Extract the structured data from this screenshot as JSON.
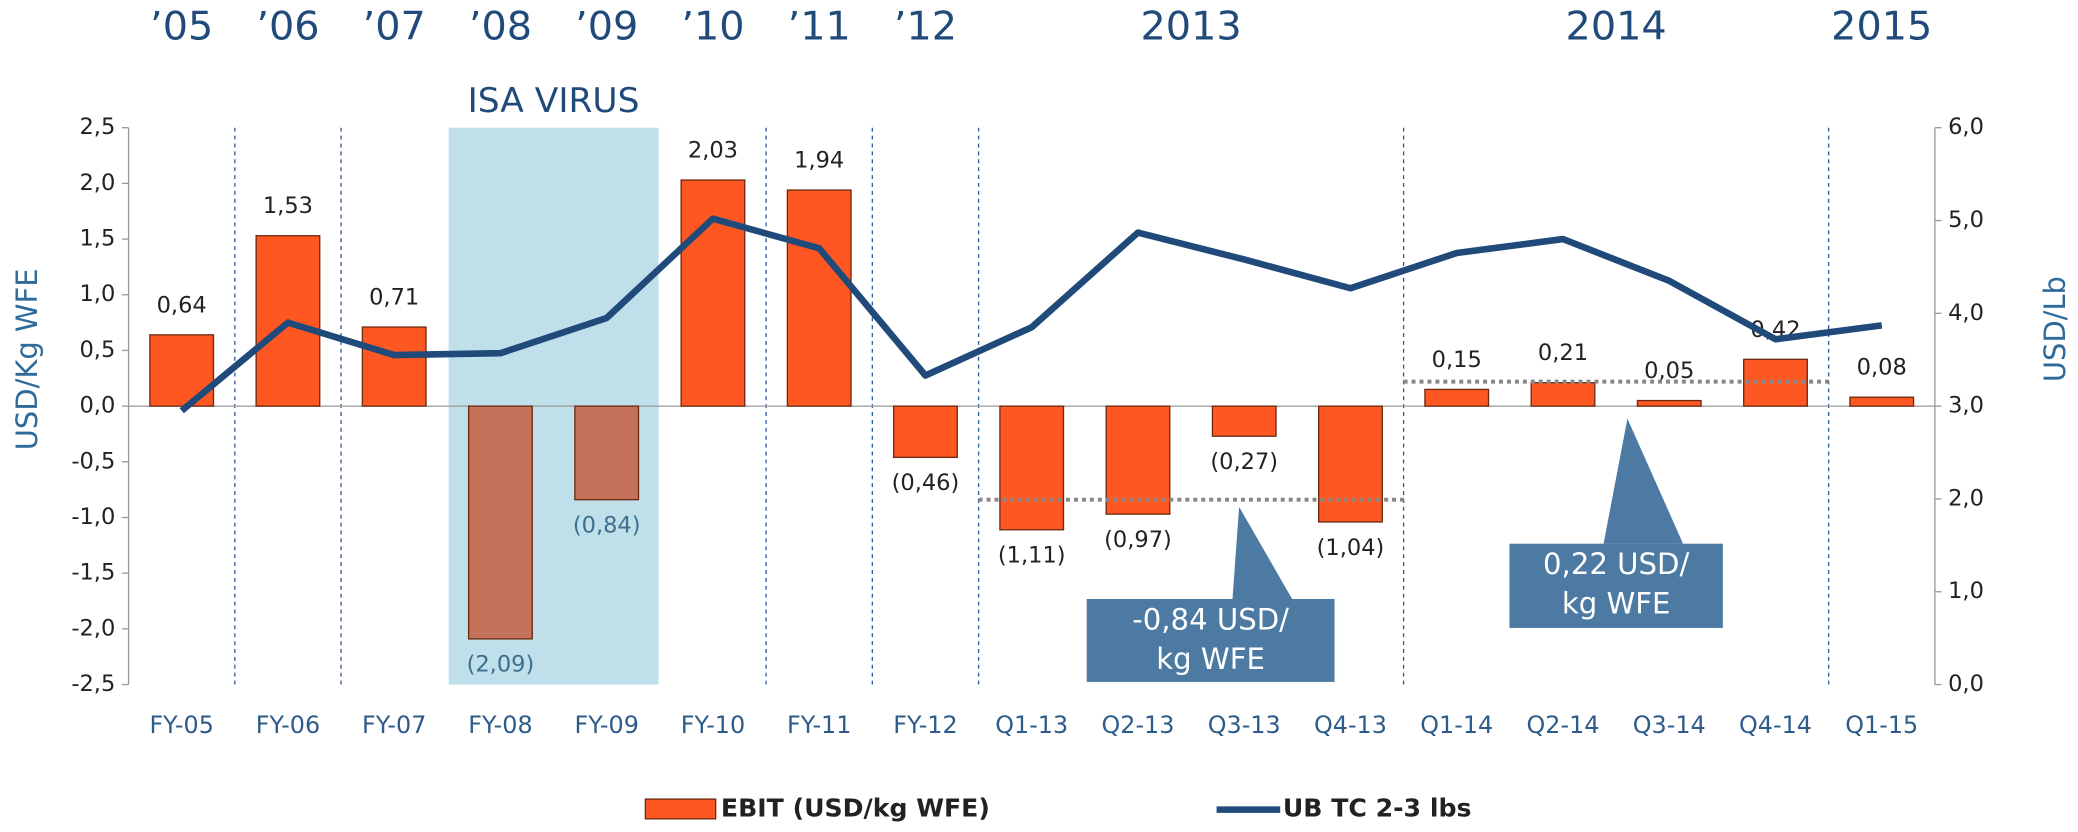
{
  "chart_data": {
    "type": "bar",
    "categories": [
      "FY-05",
      "FY-06",
      "FY-07",
      "FY-08",
      "FY-09",
      "FY-10",
      "FY-11",
      "FY-12",
      "Q1-13",
      "Q2-13",
      "Q3-13",
      "Q4-13",
      "Q1-14",
      "Q2-14",
      "Q3-14",
      "Q4-14",
      "Q1-15"
    ],
    "period_labels": [
      "’05",
      "’06",
      "’07",
      "’08",
      "’09",
      "’10",
      "’11",
      "’12",
      "2013",
      "2014",
      "2015"
    ],
    "series": [
      {
        "name": "EBIT (USD/kg WFE)",
        "type": "bar",
        "color": "#ff5722",
        "values": [
          0.64,
          1.53,
          0.71,
          -2.09,
          -0.84,
          2.03,
          1.94,
          -0.46,
          -1.11,
          -0.97,
          -0.27,
          -1.04,
          0.15,
          0.21,
          0.05,
          0.42,
          0.08
        ],
        "value_labels": [
          "0,64",
          "1,53",
          "0,71",
          "(2,09)",
          "(0,84)",
          "2,03",
          "1,94",
          "(0,46)",
          "(1,11)",
          "(0,97)",
          "(0,27)",
          "(1,04)",
          "0,15",
          "0,21",
          "0,05",
          "0,42",
          "0,08"
        ]
      },
      {
        "name": "UB TC 2-3 lbs",
        "type": "line",
        "axis": "y2",
        "color": "#1f4a7a",
        "values": [
          2.95,
          3.9,
          3.55,
          3.57,
          3.95,
          5.02,
          4.7,
          3.33,
          3.85,
          4.87,
          4.58,
          4.27,
          4.65,
          4.8,
          4.35,
          3.72,
          3.87
        ]
      }
    ],
    "highlight": {
      "label": "ISA VIRUS",
      "from": "FY-08",
      "to": "FY-09",
      "color": "#bfe0ea",
      "bar_color": "#c4735a"
    },
    "annotations": [
      {
        "text": [
          "-0,84 USD/",
          "kg WFE"
        ],
        "value": -0.84,
        "from": "Q1-13",
        "to": "Q4-13"
      },
      {
        "text": [
          "0,22 USD/",
          "kg WFE"
        ],
        "value": 0.22,
        "from": "Q1-14",
        "to": "Q4-14"
      }
    ],
    "ylabel": "USD/Kg WFE",
    "y2label": "USD/Lb",
    "ylim": [
      -2.5,
      2.5
    ],
    "yticks": [
      {
        "value": -2.5,
        "label": "-2,5"
      },
      {
        "value": -2,
        "label": "-2,0"
      },
      {
        "value": -1.5,
        "label": "-1,5"
      },
      {
        "value": -1,
        "label": "-1,0"
      },
      {
        "value": -0.5,
        "label": "-0,5"
      },
      {
        "value": 0,
        "label": "0,0"
      },
      {
        "value": 0.5,
        "label": "0,5"
      },
      {
        "value": 1,
        "label": "1,0"
      },
      {
        "value": 1.5,
        "label": "1,5"
      },
      {
        "value": 2,
        "label": "2,0"
      },
      {
        "value": 2.5,
        "label": "2,5"
      }
    ],
    "y2lim": [
      0,
      6
    ],
    "y2ticks": [
      {
        "value": 0,
        "label": "0,0"
      },
      {
        "value": 1,
        "label": "1,0"
      },
      {
        "value": 2,
        "label": "2,0"
      },
      {
        "value": 3,
        "label": "3,0"
      },
      {
        "value": 4,
        "label": "4,0"
      },
      {
        "value": 5,
        "label": "5,0"
      },
      {
        "value": 6,
        "label": "6,0"
      }
    ]
  }
}
